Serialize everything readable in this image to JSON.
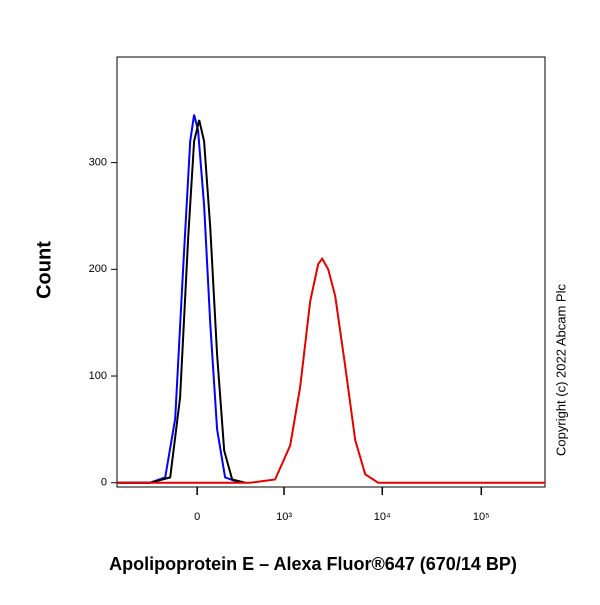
{
  "chart_data": {
    "type": "line",
    "x_label": "Apolipoprotein E – Alexa Fluor®647 (670/14 BP)",
    "y_label": "Count",
    "annotation": "Copyright (c) 2022 Abcam Plc",
    "xscale": "biexponential",
    "xlim": [
      -850,
      440000
    ],
    "xticks": [
      0,
      {
        "value": 1000,
        "label": "10³"
      },
      {
        "value": 10000,
        "label": "10⁴"
      },
      {
        "value": 100000,
        "label": "10⁵"
      }
    ],
    "ylim": [
      -4,
      399
    ],
    "yticks": [
      0,
      100,
      200,
      300
    ],
    "series": [
      {
        "color": "#0000ff",
        "x": [
          -850,
          -358,
          -220,
          -144,
          -90,
          -44,
          -19,
          6,
          44,
          83,
          130,
          188,
          317
        ],
        "values": [
          0,
          0,
          5,
          60,
          200,
          320,
          345,
          330,
          260,
          150,
          50,
          5,
          0
        ]
      },
      {
        "color": "#000000",
        "x": [
          -850,
          -358,
          -181,
          -110,
          -57,
          -19,
          13,
          44,
          83,
          130,
          181,
          245,
          369
        ],
        "values": [
          0,
          0,
          5,
          80,
          230,
          320,
          340,
          320,
          240,
          120,
          30,
          3,
          0
        ]
      },
      {
        "color": "#e00000",
        "x": [
          -850,
          426,
          805,
          1158,
          1469,
          1860,
          2244,
          2465,
          2835,
          3337,
          4212,
          5320,
          6720,
          9070,
          440000
        ],
        "values": [
          0,
          0,
          3,
          35,
          90,
          170,
          205,
          210,
          200,
          175,
          110,
          40,
          8,
          0,
          0
        ]
      }
    ]
  }
}
